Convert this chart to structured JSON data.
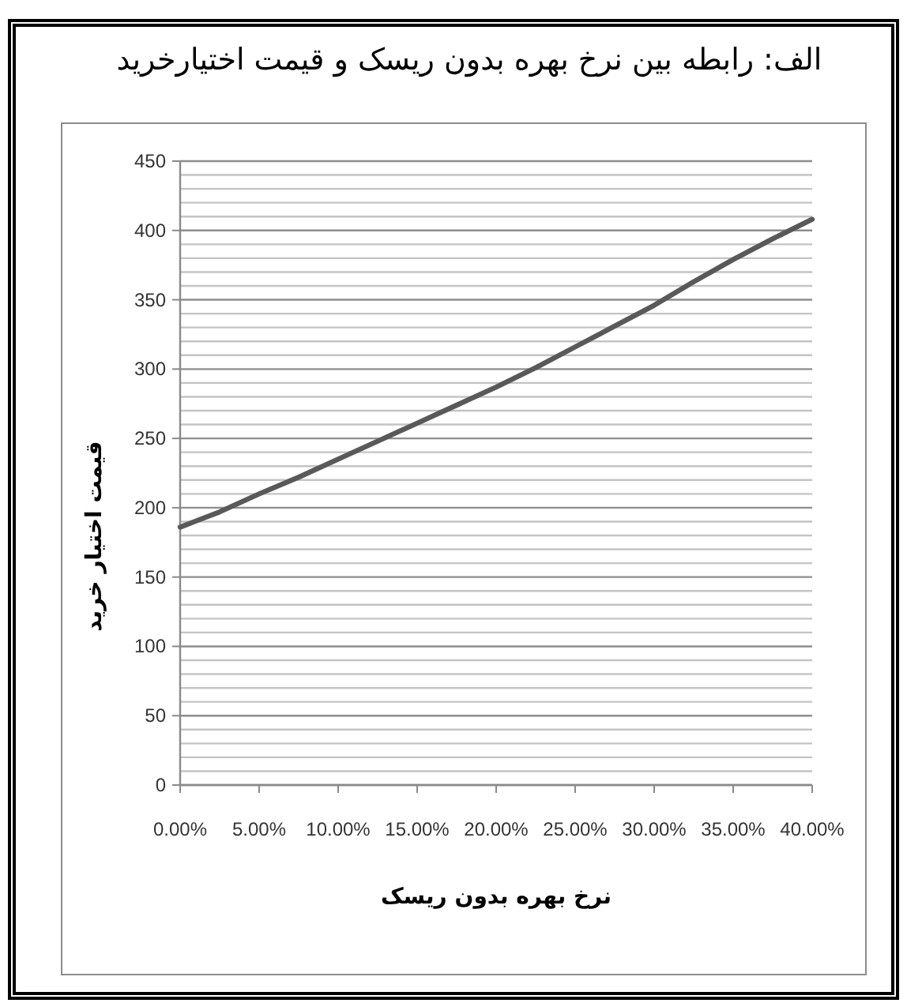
{
  "chart_data": {
    "type": "line",
    "title": "الف: رابطه بین نرخ بهره بدون ریسک و قیمت اختیارخرید",
    "xlabel": "نرخ بهره بدون ریسک",
    "ylabel": "قیمت اختیار خرید",
    "x": [
      0,
      2.5,
      5,
      7.5,
      10,
      12.5,
      15,
      17.5,
      20,
      22.5,
      25,
      27.5,
      30,
      32.5,
      35,
      37.5,
      40
    ],
    "series": [
      {
        "color": "#595959",
        "values": [
          186,
          197,
          210,
          222,
          235,
          248,
          261,
          274,
          287,
          301,
          316,
          331,
          346,
          363,
          379,
          394,
          408
        ]
      }
    ],
    "xlim": [
      0,
      40
    ],
    "xticks": [
      {
        "value": 0,
        "label": "0.00%"
      },
      {
        "value": 5,
        "label": "5.00%"
      },
      {
        "value": 10,
        "label": "10.00%"
      },
      {
        "value": 15,
        "label": "15.00%"
      },
      {
        "value": 20,
        "label": "20.00%"
      },
      {
        "value": 25,
        "label": "25.00%"
      },
      {
        "value": 30,
        "label": "30.00%"
      },
      {
        "value": 35,
        "label": "35.00%"
      },
      {
        "value": 40,
        "label": "40.00%"
      }
    ],
    "ylim": [
      0,
      450
    ],
    "yticks": [
      0,
      {
        "value": 10,
        "label": null
      },
      {
        "value": 20,
        "label": null
      },
      {
        "value": 30,
        "label": null
      },
      {
        "value": 40,
        "label": null
      },
      50,
      {
        "value": 60,
        "label": null
      },
      {
        "value": 70,
        "label": null
      },
      {
        "value": 80,
        "label": null
      },
      {
        "value": 90,
        "label": null
      },
      100,
      {
        "value": 110,
        "label": null
      },
      {
        "value": 120,
        "label": null
      },
      {
        "value": 130,
        "label": null
      },
      {
        "value": 140,
        "label": null
      },
      150,
      {
        "value": 160,
        "label": null
      },
      {
        "value": 170,
        "label": null
      },
      {
        "value": 180,
        "label": null
      },
      {
        "value": 190,
        "label": null
      },
      200,
      {
        "value": 210,
        "label": null
      },
      {
        "value": 220,
        "label": null
      },
      {
        "value": 230,
        "label": null
      },
      {
        "value": 240,
        "label": null
      },
      250,
      {
        "value": 260,
        "label": null
      },
      {
        "value": 270,
        "label": null
      },
      {
        "value": 280,
        "label": null
      },
      {
        "value": 290,
        "label": null
      },
      300,
      {
        "value": 310,
        "label": null
      },
      {
        "value": 320,
        "label": null
      },
      {
        "value": 330,
        "label": null
      },
      {
        "value": 340,
        "label": null
      },
      350,
      {
        "value": 360,
        "label": null
      },
      {
        "value": 370,
        "label": null
      },
      {
        "value": 380,
        "label": null
      },
      {
        "value": 390,
        "label": null
      },
      400,
      {
        "value": 410,
        "label": null
      },
      {
        "value": 420,
        "label": null
      },
      {
        "value": 430,
        "label": null
      },
      {
        "value": 440,
        "label": null
      },
      450
    ],
    "grid": "y",
    "line_style": "solid"
  }
}
